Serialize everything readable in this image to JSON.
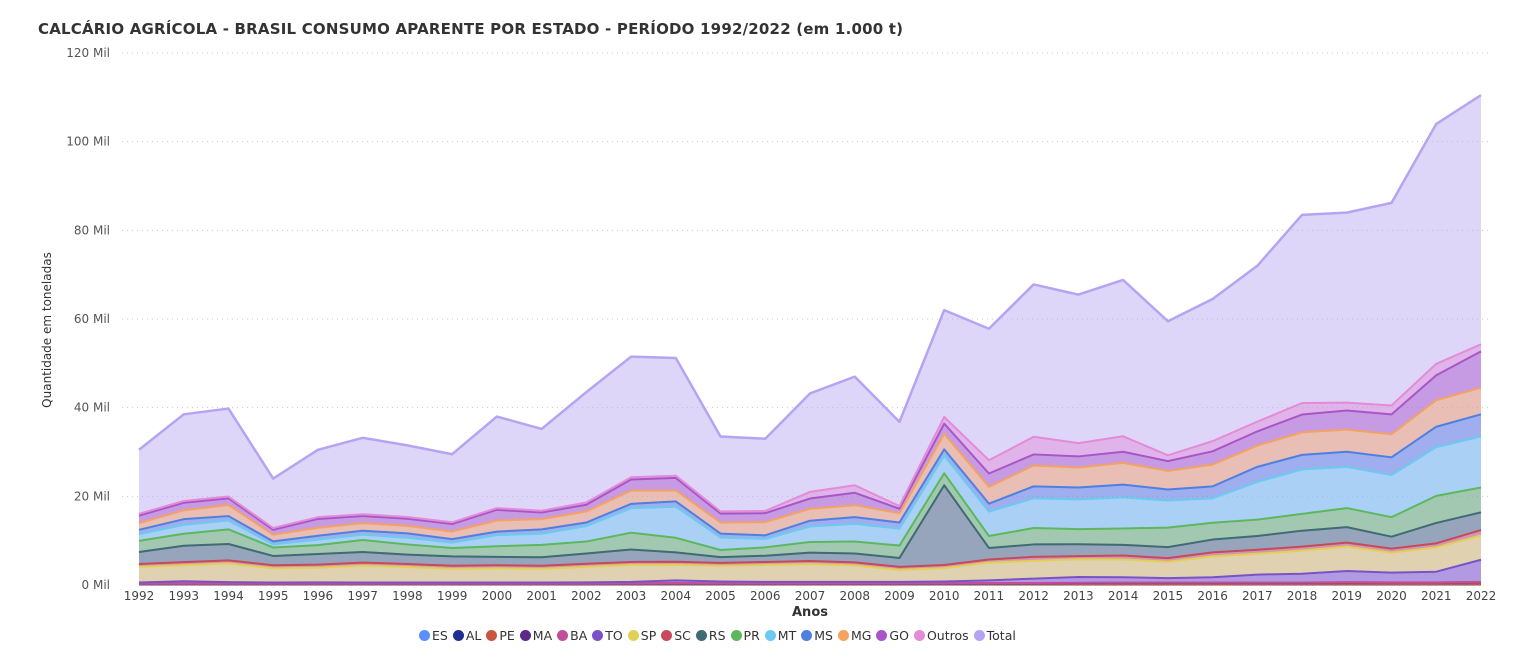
{
  "chart_data": {
    "type": "area",
    "title": "CALCÁRIO AGRÍCOLA - BRASIL CONSUMO APARENTE POR ESTADO - PERÍODO 1992/2022 (em 1.000 t)",
    "xlabel": "Anos",
    "ylabel": "Quantidade em toneladas",
    "ylim": [
      0,
      120000
    ],
    "yticks": [
      {
        "value": 0,
        "label": "0 Mil"
      },
      {
        "value": 20000,
        "label": "20 Mil"
      },
      {
        "value": 40000,
        "label": "40 Mil"
      },
      {
        "value": 60000,
        "label": "60 Mil"
      },
      {
        "value": 80000,
        "label": "80 Mil"
      },
      {
        "value": 100000,
        "label": "100 Mil"
      },
      {
        "value": 120000,
        "label": "120 Mil"
      }
    ],
    "grid": true,
    "legend_position": "bottom",
    "categories": [
      "1992",
      "1993",
      "1994",
      "1995",
      "1996",
      "1997",
      "1998",
      "1999",
      "2000",
      "2001",
      "2002",
      "2003",
      "2004",
      "2005",
      "2006",
      "2007",
      "2008",
      "2009",
      "2010",
      "2011",
      "2012",
      "2013",
      "2014",
      "2015",
      "2016",
      "2017",
      "2018",
      "2019",
      "2020",
      "2021",
      "2022"
    ],
    "series": [
      {
        "name": "ES",
        "color": "#5b8ff9",
        "values": [
          100,
          100,
          100,
          100,
          100,
          100,
          100,
          100,
          100,
          100,
          100,
          100,
          100,
          100,
          100,
          100,
          100,
          100,
          100,
          100,
          100,
          100,
          100,
          100,
          100,
          100,
          100,
          100,
          100,
          100,
          100
        ]
      },
      {
        "name": "AL",
        "color": "#1f2f8f",
        "values": [
          50,
          50,
          50,
          50,
          50,
          50,
          50,
          50,
          50,
          50,
          50,
          50,
          50,
          50,
          50,
          50,
          50,
          50,
          50,
          50,
          50,
          50,
          50,
          50,
          50,
          50,
          50,
          50,
          50,
          50,
          50
        ]
      },
      {
        "name": "PE",
        "color": "#c8553d",
        "values": [
          50,
          50,
          50,
          50,
          50,
          50,
          50,
          50,
          50,
          50,
          50,
          50,
          50,
          50,
          50,
          50,
          50,
          50,
          50,
          50,
          50,
          50,
          50,
          50,
          50,
          50,
          50,
          50,
          50,
          50,
          50
        ]
      },
      {
        "name": "MA",
        "color": "#5b2a86",
        "values": [
          100,
          100,
          100,
          100,
          100,
          100,
          100,
          100,
          100,
          100,
          100,
          150,
          200,
          150,
          150,
          150,
          150,
          150,
          150,
          200,
          200,
          250,
          300,
          300,
          300,
          300,
          300,
          400,
          350,
          350,
          450
        ]
      },
      {
        "name": "BA",
        "color": "#c0509e",
        "values": [
          50,
          50,
          50,
          50,
          50,
          50,
          50,
          50,
          50,
          50,
          50,
          50,
          50,
          50,
          50,
          50,
          50,
          50,
          50,
          50,
          50,
          50,
          50,
          50,
          50,
          50,
          50,
          50,
          50,
          50,
          50
        ]
      },
      {
        "name": "TO",
        "color": "#7b52c6",
        "values": [
          200,
          500,
          300,
          200,
          250,
          200,
          200,
          200,
          200,
          200,
          250,
          300,
          600,
          400,
          300,
          300,
          300,
          300,
          400,
          600,
          1000,
          1300,
          1200,
          1000,
          1200,
          1800,
          2000,
          2500,
          2200,
          2400,
          5000
        ]
      },
      {
        "name": "SP",
        "color": "#e2cf56",
        "values": [
          3500,
          3600,
          4200,
          3200,
          3300,
          3800,
          3500,
          3100,
          3200,
          3100,
          3500,
          3800,
          3500,
          3500,
          3800,
          4000,
          3700,
          2700,
          3000,
          4000,
          4000,
          4000,
          4000,
          3700,
          4700,
          4700,
          5200,
          5500,
          4500,
          5500,
          5500
        ]
      },
      {
        "name": "SC",
        "color": "#c64a5b",
        "values": [
          700,
          700,
          700,
          700,
          700,
          700,
          700,
          700,
          700,
          700,
          700,
          700,
          700,
          700,
          700,
          700,
          700,
          700,
          700,
          700,
          900,
          700,
          900,
          800,
          900,
          900,
          900,
          900,
          900,
          900,
          1200
        ]
      },
      {
        "name": "RS",
        "color": "#3f6b72",
        "values": [
          2700,
          3700,
          3700,
          2100,
          2400,
          2400,
          2100,
          2100,
          1900,
          1900,
          2300,
          2800,
          2100,
          1300,
          1400,
          1900,
          2000,
          2000,
          18000,
          2600,
          2800,
          2700,
          2400,
          2500,
          2900,
          3100,
          3600,
          3500,
          2700,
          4600,
          4000
        ]
      },
      {
        "name": "PR",
        "color": "#5cb85c",
        "values": [
          2500,
          2700,
          3300,
          1900,
          2000,
          2700,
          2300,
          1900,
          2400,
          2800,
          2700,
          3800,
          3300,
          1600,
          1900,
          2400,
          2700,
          2800,
          2700,
          2700,
          3700,
          3400,
          3700,
          4400,
          3800,
          3700,
          3800,
          4300,
          4400,
          6100,
          5600
        ]
      },
      {
        "name": "MT",
        "color": "#6ccaef",
        "values": [
          1500,
          2000,
          2000,
          700,
          1200,
          1200,
          1500,
          1200,
          2500,
          2500,
          3500,
          5500,
          7000,
          2800,
          1900,
          3500,
          4000,
          3800,
          4000,
          5500,
          6700,
          6700,
          7000,
          6100,
          5500,
          8500,
          10000,
          9300,
          9500,
          11000,
          11500
        ]
      },
      {
        "name": "MS",
        "color": "#4f7fe0",
        "values": [
          1000,
          1300,
          1000,
          700,
          900,
          900,
          1000,
          800,
          800,
          1000,
          800,
          1000,
          1200,
          900,
          800,
          1300,
          1500,
          1400,
          1400,
          1800,
          2700,
          2700,
          2900,
          2500,
          2700,
          3400,
          3300,
          3400,
          4000,
          4600,
          5000
        ]
      },
      {
        "name": "MG",
        "color": "#f4a261",
        "values": [
          1500,
          2000,
          2500,
          1500,
          1800,
          1700,
          1700,
          1700,
          2500,
          2300,
          2500,
          3000,
          2500,
          2500,
          3000,
          2700,
          2700,
          2100,
          3500,
          3800,
          4700,
          4500,
          4900,
          4200,
          4900,
          4800,
          5100,
          5000,
          5200,
          6000,
          6000
        ]
      },
      {
        "name": "GO",
        "color": "#a855c8",
        "values": [
          1700,
          1700,
          1500,
          1100,
          2000,
          1600,
          1600,
          1700,
          2400,
          1500,
          1500,
          2500,
          2800,
          2000,
          2000,
          2300,
          2800,
          1000,
          2300,
          3000,
          2500,
          2500,
          2500,
          2200,
          3000,
          3200,
          4000,
          4300,
          4500,
          5600,
          8200
        ]
      },
      {
        "name": "Outros",
        "color": "#e38bd6",
        "values": [
          400,
          400,
          400,
          400,
          400,
          400,
          400,
          400,
          400,
          400,
          500,
          500,
          500,
          500,
          500,
          1500,
          1700,
          600,
          1500,
          3000,
          4000,
          3000,
          3500,
          1300,
          2300,
          2200,
          2600,
          1800,
          2000,
          2600,
          1600
        ]
      },
      {
        "name": "Total",
        "color": "#b6a3f2",
        "values": [
          30500,
          38500,
          39800,
          24000,
          30500,
          33200,
          31500,
          29500,
          38000,
          35200,
          43500,
          51500,
          51200,
          33500,
          33000,
          43200,
          47000,
          36800,
          62000,
          57800,
          67800,
          65500,
          68800,
          59500,
          64500,
          72000,
          83500,
          84000,
          86200,
          104000,
          110500
        ]
      }
    ]
  }
}
